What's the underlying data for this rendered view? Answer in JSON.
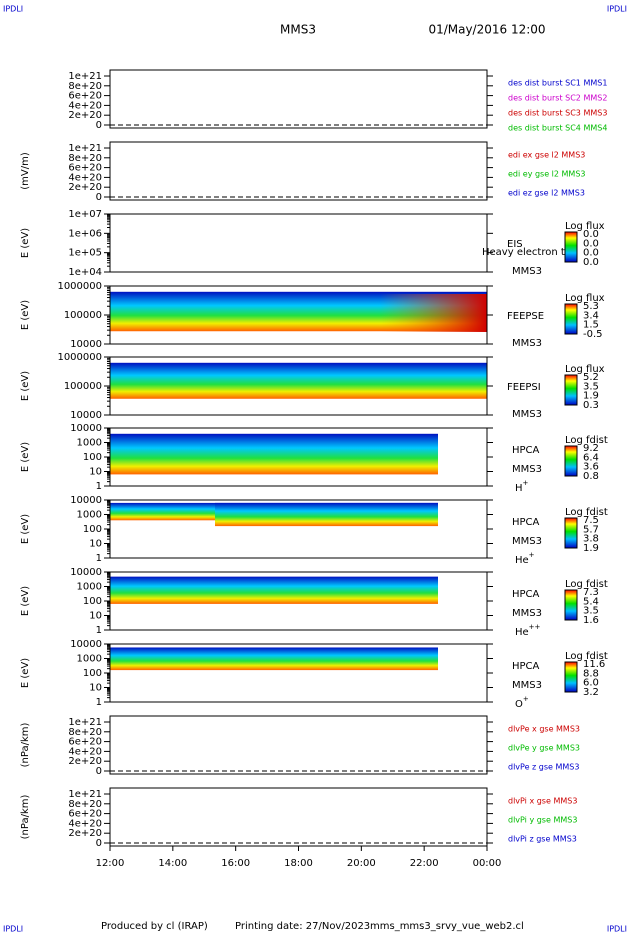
{
  "header": {
    "left": "IPDLI",
    "right": "IPDLI",
    "title": "MMS3",
    "date": "01/May/2016 12:00"
  },
  "footer": {
    "credit": "Produced by cl (IRAP)",
    "printed": "Printing date: 27/Nov/2023",
    "file": "mms_mms3_srvy_vue_web2.cl"
  },
  "xticks": [
    "12:00",
    "14:00",
    "16:00",
    "18:00",
    "20:00",
    "22:00",
    "00:00"
  ],
  "panels": [
    {
      "kind": "line",
      "yticks": [
        "1e+21",
        "8e+20",
        "6e+20",
        "4e+20",
        "2e+20",
        "0"
      ],
      "legend": [
        {
          "text": "des dist burst SC1 MMS1",
          "color": "#0000cc"
        },
        {
          "text": "des dist burst SC2 MMS2",
          "color": "#cc00cc"
        },
        {
          "text": "des dist burst SC3 MMS3",
          "color": "#cc0000"
        },
        {
          "text": "des dist burst SC4 MMS4",
          "color": "#00bb00"
        }
      ]
    },
    {
      "kind": "line",
      "ylabel": "(mV/m)",
      "yticks": [
        "1e+21",
        "8e+20",
        "6e+20",
        "4e+20",
        "2e+20",
        "0"
      ],
      "legend": [
        {
          "text": "edi ex gse l2 MMS3",
          "color": "#cc0000"
        },
        {
          "text": "edi ey gse l2 MMS3",
          "color": "#00bb00"
        },
        {
          "text": "edi ez gse l2 MMS3",
          "color": "#0000cc"
        }
      ]
    },
    {
      "kind": "log",
      "ylabel": "E (eV)",
      "yticks": [
        "1e+07",
        "1e+06",
        "1e+05",
        "1e+04"
      ],
      "name": "EIS",
      "overlay": "Heavy electron to",
      "sc": "MMS3",
      "colorbar": {
        "title": "Log flux",
        "labels": [
          "0.0",
          "0.0",
          "0.0",
          "0.0"
        ]
      }
    },
    {
      "kind": "log",
      "ylabel": "E (eV)",
      "yticks": [
        "1000000",
        "100000",
        "10000"
      ],
      "name": "FEEPSE",
      "sc": "MMS3",
      "colorbar": {
        "title": "Log flux",
        "labels": [
          "5.3",
          "3.4",
          "1.5",
          "-0.5"
        ]
      }
    },
    {
      "kind": "log",
      "ylabel": "E (eV)",
      "yticks": [
        "1000000",
        "100000",
        "10000"
      ],
      "name": "FEEPSI",
      "sc": "MMS3",
      "colorbar": {
        "title": "Log flux",
        "labels": [
          "5.2",
          "3.5",
          "1.9",
          "0.3"
        ]
      }
    },
    {
      "kind": "log",
      "ylabel": "E (eV)",
      "yticks": [
        "10000",
        "1000",
        "100",
        "10",
        "1"
      ],
      "name": "HPCA",
      "sc": "MMS3",
      "species": "H",
      "charge": "+",
      "colorbar": {
        "title": "Log fdist",
        "labels": [
          "9.2",
          "6.4",
          "3.6",
          "0.8"
        ]
      }
    },
    {
      "kind": "log",
      "ylabel": "E (eV)",
      "yticks": [
        "10000",
        "1000",
        "100",
        "10",
        "1"
      ],
      "name": "HPCA",
      "sc": "MMS3",
      "species": "He",
      "charge": "+",
      "colorbar": {
        "title": "Log fdist",
        "labels": [
          "7.5",
          "5.7",
          "3.8",
          "1.9"
        ]
      }
    },
    {
      "kind": "log",
      "ylabel": "E (eV)",
      "yticks": [
        "10000",
        "1000",
        "100",
        "10",
        "1"
      ],
      "name": "HPCA",
      "sc": "MMS3",
      "species": "He",
      "charge": "++",
      "colorbar": {
        "title": "Log fdist",
        "labels": [
          "7.3",
          "5.4",
          "3.5",
          "1.6"
        ]
      }
    },
    {
      "kind": "log",
      "ylabel": "E (eV)",
      "yticks": [
        "10000",
        "1000",
        "100",
        "10",
        "1"
      ],
      "name": "HPCA",
      "sc": "MMS3",
      "species": "O",
      "charge": "+",
      "colorbar": {
        "title": "Log fdist",
        "labels": [
          "11.6",
          "8.8",
          "6.0",
          "3.2"
        ]
      }
    },
    {
      "kind": "line",
      "ylabel": "(nPa/km)",
      "yticks": [
        "1e+21",
        "8e+20",
        "6e+20",
        "4e+20",
        "2e+20",
        "0"
      ],
      "legend": [
        {
          "text": "dlvPe x gse MMS3",
          "color": "#cc0000"
        },
        {
          "text": "dlvPe y gse MMS3",
          "color": "#00bb00"
        },
        {
          "text": "dlvPe z gse MMS3",
          "color": "#0000cc"
        }
      ]
    },
    {
      "kind": "line",
      "ylabel": "(nPa/km)",
      "yticks": [
        "1e+21",
        "8e+20",
        "6e+20",
        "4e+20",
        "2e+20",
        "0"
      ],
      "legend": [
        {
          "text": "dlvPi x gse MMS3",
          "color": "#cc0000"
        },
        {
          "text": "dlvPi y gse MMS3",
          "color": "#00bb00"
        },
        {
          "text": "dlvPi z gse MMS3",
          "color": "#0000cc"
        }
      ]
    }
  ]
}
